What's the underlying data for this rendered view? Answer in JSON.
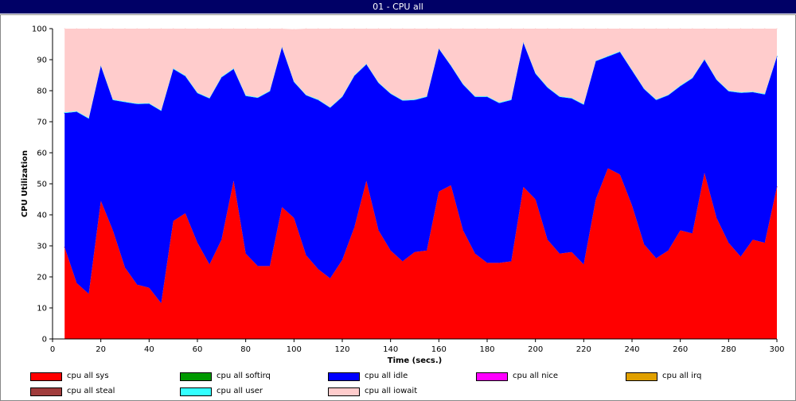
{
  "window": {
    "title": "01 - CPU all"
  },
  "chart_data": {
    "type": "area",
    "title": "01 - CPU all",
    "xlabel": "Time (secs.)",
    "ylabel": "CPU Utilization",
    "xlim": [
      0,
      300
    ],
    "ylim": [
      0,
      100
    ],
    "xticks": [
      0,
      20,
      40,
      60,
      80,
      100,
      120,
      140,
      160,
      180,
      200,
      220,
      240,
      260,
      280,
      300
    ],
    "yticks": [
      0,
      10,
      20,
      30,
      40,
      50,
      60,
      70,
      80,
      90,
      100
    ],
    "x": [
      5,
      10,
      15,
      20,
      25,
      30,
      35,
      40,
      45,
      50,
      55,
      60,
      65,
      70,
      75,
      80,
      85,
      90,
      95,
      100,
      105,
      110,
      115,
      120,
      125,
      130,
      135,
      140,
      145,
      150,
      155,
      160,
      165,
      170,
      175,
      180,
      185,
      190,
      195,
      200,
      205,
      210,
      215,
      220,
      225,
      230,
      235,
      240,
      245,
      250,
      255,
      260,
      265,
      270,
      275,
      280,
      285,
      290,
      295,
      300
    ],
    "stacked": true,
    "series": [
      {
        "name": "cpu all sys",
        "color": "#ff0000",
        "values": [
          29.5,
          18.0,
          14.5,
          44.5,
          35.0,
          23.0,
          17.5,
          16.5,
          11.5,
          38.0,
          40.5,
          31.0,
          24.0,
          32.0,
          51.0,
          27.5,
          23.5,
          23.5,
          42.5,
          39.0,
          27.0,
          22.5,
          19.5,
          25.5,
          36.0,
          51.0,
          35.0,
          28.5,
          25.0,
          28.0,
          28.5,
          47.5,
          49.5,
          35.0,
          27.5,
          24.5,
          24.5,
          25.0,
          49.0,
          45.0,
          32.0,
          27.5,
          28.0,
          24.0,
          45.0,
          55.0,
          53.0,
          43.0,
          30.5,
          26.0,
          28.5,
          35.0,
          34.0,
          53.5,
          39.0,
          31.0,
          26.5,
          32.0,
          31.0,
          49.0
        ]
      },
      {
        "name": "cpu all softirq",
        "color": "#009900",
        "values": [
          0,
          0,
          0,
          0,
          0,
          0,
          0,
          0,
          0,
          0,
          0,
          0,
          0,
          0,
          0,
          0,
          0,
          0,
          0,
          0,
          0,
          0,
          0,
          0,
          0,
          0,
          0,
          0,
          0,
          0,
          0,
          0,
          0,
          0,
          0,
          0,
          0,
          0,
          0,
          0,
          0,
          0,
          0,
          0,
          0,
          0,
          0,
          0,
          0,
          0,
          0,
          0,
          0,
          0,
          0,
          0,
          0,
          0,
          0,
          0
        ]
      },
      {
        "name": "cpu all idle",
        "color": "#0000ff",
        "values": [
          43.3,
          55.2,
          56.5,
          43.5,
          42.0,
          53.3,
          58.2,
          59.3,
          62.0,
          49.0,
          44.2,
          48.2,
          53.5,
          52.3,
          36.0,
          50.8,
          54.2,
          56.3,
          51.5,
          43.8,
          51.5,
          54.5,
          55.0,
          52.5,
          48.8,
          37.5,
          47.5,
          50.5,
          51.8,
          49.0,
          49.5,
          46.0,
          38.5,
          47.0,
          50.5,
          53.5,
          51.5,
          52.0,
          46.5,
          40.5,
          49.0,
          50.5,
          49.5,
          51.5,
          44.5,
          36.0,
          39.5,
          43.5,
          50.0,
          51.0,
          50.0,
          46.5,
          50.0,
          36.5,
          44.5,
          48.8,
          52.8,
          47.5,
          47.8,
          42.0
        ]
      },
      {
        "name": "cpu all nice",
        "color": "#ff00ff",
        "values": [
          0,
          0,
          0,
          0,
          0,
          0,
          0,
          0,
          0,
          0,
          0,
          0,
          0,
          0,
          0,
          0,
          0,
          0,
          0,
          0,
          0,
          0,
          0,
          0,
          0,
          0,
          0,
          0,
          0,
          0,
          0,
          0,
          0,
          0,
          0,
          0,
          0,
          0,
          0,
          0,
          0,
          0,
          0,
          0,
          0,
          0,
          0,
          0,
          0,
          0,
          0,
          0,
          0,
          0,
          0,
          0,
          0,
          0,
          0,
          0
        ]
      },
      {
        "name": "cpu all irq",
        "color": "#e0a000",
        "values": [
          0,
          0,
          0,
          0,
          0,
          0,
          0,
          0,
          0,
          0,
          0,
          0,
          0,
          0,
          0,
          0,
          0,
          0,
          0,
          0,
          0,
          0,
          0,
          0,
          0,
          0,
          0,
          0,
          0,
          0,
          0,
          0,
          0,
          0,
          0,
          0,
          0,
          0,
          0,
          0,
          0,
          0,
          0,
          0,
          0,
          0,
          0,
          0,
          0,
          0,
          0,
          0,
          0,
          0,
          0,
          0,
          0,
          0,
          0,
          0
        ]
      },
      {
        "name": "cpu all steal",
        "color": "#a03c3c",
        "values": [
          0,
          0,
          0,
          0,
          0,
          0,
          0,
          0,
          0,
          0,
          0,
          0,
          0,
          0,
          0,
          0,
          0,
          0,
          0,
          0,
          0,
          0,
          0,
          0,
          0,
          0,
          0,
          0,
          0,
          0,
          0,
          0,
          0,
          0,
          0,
          0,
          0,
          0,
          0,
          0,
          0,
          0,
          0,
          0,
          0,
          0,
          0,
          0,
          0,
          0,
          0,
          0,
          0,
          0,
          0,
          0,
          0,
          0,
          0,
          0
        ]
      },
      {
        "name": "cpu all user",
        "color": "#33ffff",
        "values": [
          0.2,
          0.2,
          0.2,
          0.2,
          0.2,
          0.2,
          0.2,
          0.2,
          0.2,
          0.2,
          0.2,
          0.2,
          0.2,
          0.2,
          0.2,
          0.2,
          0.2,
          0.2,
          0.2,
          0.2,
          0.2,
          0.2,
          0.2,
          0.2,
          0.2,
          0.2,
          0.2,
          0.2,
          0.2,
          0.2,
          0.2,
          0.2,
          0.2,
          0.2,
          0.2,
          0.2,
          0.2,
          0.2,
          0.2,
          0.2,
          0.2,
          0.2,
          0.2,
          0.2,
          0.2,
          0.2,
          0.2,
          0.2,
          0.2,
          0.2,
          0.2,
          0.2,
          0.2,
          0.2,
          0.2,
          0.2,
          0.2,
          0.2,
          0.2,
          0.2
        ]
      },
      {
        "name": "cpu all iowait",
        "color": "#ffcccc",
        "values": [
          27.0,
          26.6,
          28.8,
          11.8,
          22.8,
          23.5,
          24.1,
          24.0,
          26.3,
          12.8,
          15.1,
          20.6,
          22.3,
          15.5,
          12.8,
          21.5,
          22.1,
          20.0,
          5.8,
          16.8,
          21.3,
          22.8,
          25.3,
          21.8,
          15.0,
          11.3,
          17.3,
          20.8,
          23.0,
          22.8,
          21.8,
          6.3,
          11.8,
          17.8,
          21.8,
          21.8,
          23.8,
          22.8,
          4.3,
          14.3,
          18.8,
          21.8,
          22.3,
          24.3,
          10.3,
          8.8,
          7.3,
          13.3,
          19.3,
          22.8,
          21.3,
          18.3,
          15.8,
          9.8,
          16.3,
          20.0,
          20.5,
          20.3,
          21.0,
          8.8
        ]
      }
    ],
    "legend_position": "bottom",
    "grid": false
  }
}
